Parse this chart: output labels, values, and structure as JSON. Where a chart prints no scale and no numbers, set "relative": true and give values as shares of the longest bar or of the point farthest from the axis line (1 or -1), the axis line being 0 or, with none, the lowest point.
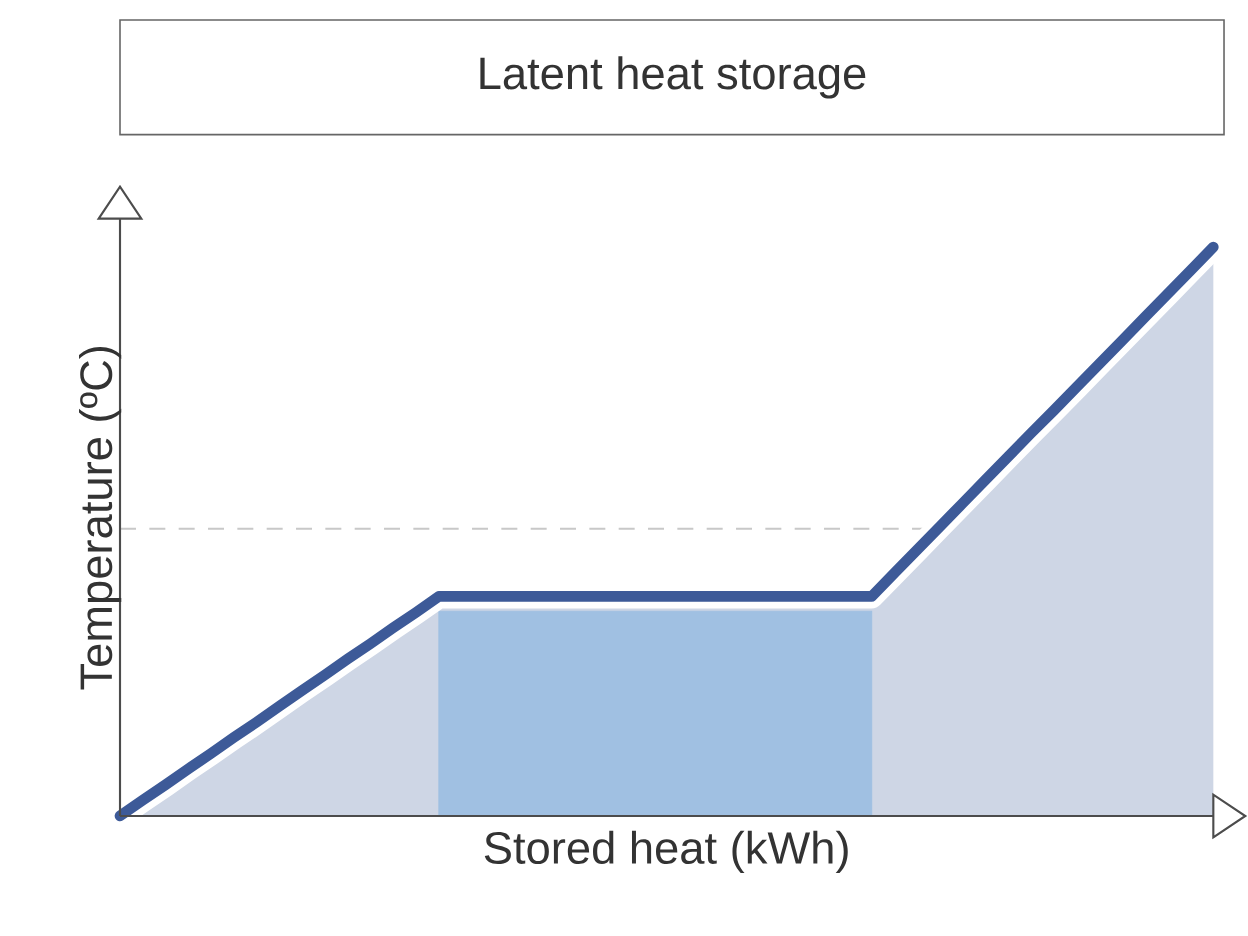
{
  "chart_data": {
    "type": "area",
    "title": "Latent heat storage",
    "xlabel": "Stored heat (kWh)",
    "ylabel": "Temperature (ºC)",
    "relative": true,
    "categories": [
      null,
      null,
      null,
      null,
      null,
      null,
      null,
      null,
      null,
      null,
      null,
      null,
      null,
      null,
      null,
      null,
      null,
      null,
      null,
      null,
      null,
      null,
      null,
      null,
      null,
      null,
      null,
      null,
      null,
      null,
      null,
      null,
      null,
      null,
      null,
      null,
      null,
      null,
      null,
      null,
      null,
      null,
      null,
      null,
      null,
      null,
      null,
      null,
      null
    ],
    "series": [
      {
        "color": "#3d5a98",
        "values": [
          0,
          0.028,
          0.055,
          0.083,
          0.11,
          0.138,
          0.165,
          0.193,
          0.221,
          0.248,
          0.276,
          0.303,
          0.331,
          0.358,
          0.386,
          0.386,
          0.386,
          0.386,
          0.386,
          0.386,
          0.386,
          0.386,
          0.386,
          0.386,
          0.386,
          0.386,
          0.386,
          0.386,
          0.386,
          0.386,
          0.386,
          0.386,
          0.386,
          0.386,
          0.427,
          0.468,
          0.509,
          0.55,
          0.591,
          0.632,
          0.673,
          0.713,
          0.754,
          0.795,
          0.836,
          0.877,
          0.918,
          0.959,
          1
        ]
      },
      {
        "color": "#a0c0e2",
        "values": [
          null,
          null,
          null,
          null,
          null,
          null,
          null,
          null,
          null,
          null,
          null,
          null,
          null,
          null,
          0.36,
          0.36,
          0.36,
          0.36,
          0.36,
          0.36,
          0.36,
          0.36,
          0.36,
          0.36,
          0.36,
          0.36,
          0.36,
          0.36,
          0.36,
          0.36,
          0.36,
          0.36,
          0.36,
          0.36,
          null,
          null,
          null,
          null,
          null,
          null,
          null,
          null,
          null,
          null,
          null,
          null,
          null,
          null,
          null
        ]
      }
    ],
    "ref_lines": [
      {
        "axis": "y",
        "value": 0.505,
        "color": "#c8c8c8",
        "line_style": "dashed"
      }
    ]
  }
}
